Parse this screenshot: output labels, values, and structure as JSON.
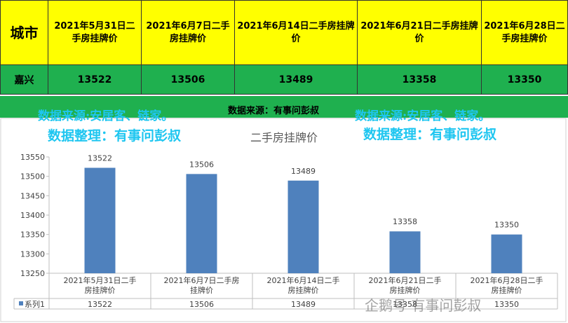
{
  "table": {
    "city_header": "城市",
    "date_headers": [
      "2021年5月31日二手房挂牌价",
      "2021年6月7日二手房挂牌价",
      "2021年6月14日二手房挂牌价",
      "2021年6月21日二手房挂牌价",
      "2021年6月28日二手房挂牌价"
    ],
    "city": "嘉兴",
    "values": [
      "13522",
      "13506",
      "13489",
      "13358",
      "13350"
    ]
  },
  "banner": {
    "source_left": "数据来源:安居客、链家。",
    "source_center": "数据来源：有事问彭叔",
    "source_right": "数据来源:安居客、链家。",
    "organizer_left": "数据整理：有事问彭叔",
    "organizer_right": "数据整理：有事问彭叔"
  },
  "watermark": "企鹅号 有事问彭叔",
  "colors": {
    "header_bg": "#ffff00",
    "row_bg": "#1fb04f",
    "bar": "#4f81bd",
    "watermark_text": "#1ec6f0"
  },
  "chart_data": {
    "type": "bar",
    "title": "二手房挂牌价",
    "categories": [
      "2021年5月31日二手房挂牌价",
      "2021年6月7日二手房挂牌价",
      "2021年6月14日二手房挂牌价",
      "2021年6月21日二手房挂牌价",
      "2021年6月28日二手房挂牌价"
    ],
    "series": [
      {
        "name": "系列1",
        "values": [
          13522,
          13506,
          13489,
          13358,
          13350
        ]
      }
    ],
    "ylim": [
      13250,
      13550
    ],
    "yticks": [
      13250,
      13300,
      13350,
      13400,
      13450,
      13500,
      13550
    ],
    "grid": false,
    "data_table": true,
    "legend": "data-table-left"
  }
}
